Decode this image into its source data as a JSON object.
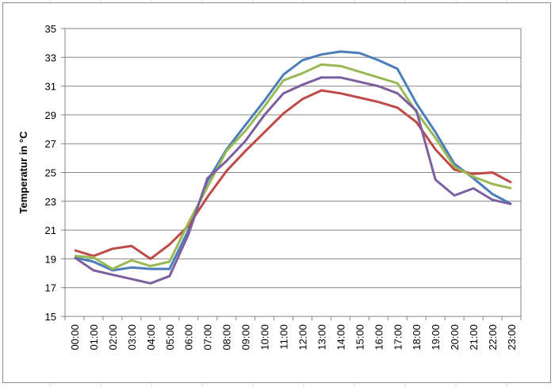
{
  "chart_data": {
    "type": "line",
    "title": "",
    "xlabel": "",
    "ylabel": "Temperatur in °C",
    "ylim": [
      15,
      35
    ],
    "yticks": [
      15,
      17,
      19,
      21,
      23,
      25,
      27,
      29,
      31,
      33,
      35
    ],
    "grid": "horizontal",
    "legend": "none",
    "categories": [
      "00:00",
      "01:00",
      "02:00",
      "03:00",
      "04:00",
      "05:00",
      "06:00",
      "07:00",
      "08:00",
      "09:00",
      "10:00",
      "11:00",
      "12:00",
      "13:00",
      "14:00",
      "15:00",
      "16:00",
      "17:00",
      "18:00",
      "19:00",
      "20:00",
      "21:00",
      "22:00",
      "23:00"
    ],
    "series": [
      {
        "color": "#4a7ebb",
        "values": [
          19.1,
          18.8,
          18.2,
          18.4,
          18.3,
          18.3,
          21.0,
          24.4,
          26.6,
          28.3,
          30.0,
          31.8,
          32.8,
          33.2,
          33.4,
          33.3,
          32.8,
          32.2,
          29.8,
          27.8,
          25.6,
          24.6,
          23.5,
          22.8
        ]
      },
      {
        "color": "#be4b48",
        "values": [
          19.6,
          19.2,
          19.7,
          19.9,
          19.0,
          20.0,
          21.3,
          23.3,
          25.1,
          26.5,
          27.8,
          29.1,
          30.1,
          30.7,
          30.5,
          30.2,
          29.9,
          29.5,
          28.5,
          26.6,
          25.2,
          24.9,
          25.0,
          24.3
        ]
      },
      {
        "color": "#98b954",
        "values": [
          19.2,
          19.1,
          18.3,
          18.9,
          18.5,
          18.8,
          21.5,
          24.0,
          26.5,
          27.9,
          29.6,
          31.4,
          31.9,
          32.5,
          32.4,
          32.0,
          31.6,
          31.2,
          29.2,
          27.4,
          25.4,
          24.7,
          24.2,
          23.9
        ]
      },
      {
        "color": "#7d5fa0",
        "values": [
          19.1,
          18.2,
          17.9,
          17.6,
          17.3,
          17.8,
          20.7,
          24.6,
          25.8,
          27.2,
          29.0,
          30.5,
          31.1,
          31.6,
          31.6,
          31.3,
          31.0,
          30.5,
          29.3,
          24.5,
          23.4,
          23.9,
          23.1,
          22.8
        ]
      }
    ]
  }
}
